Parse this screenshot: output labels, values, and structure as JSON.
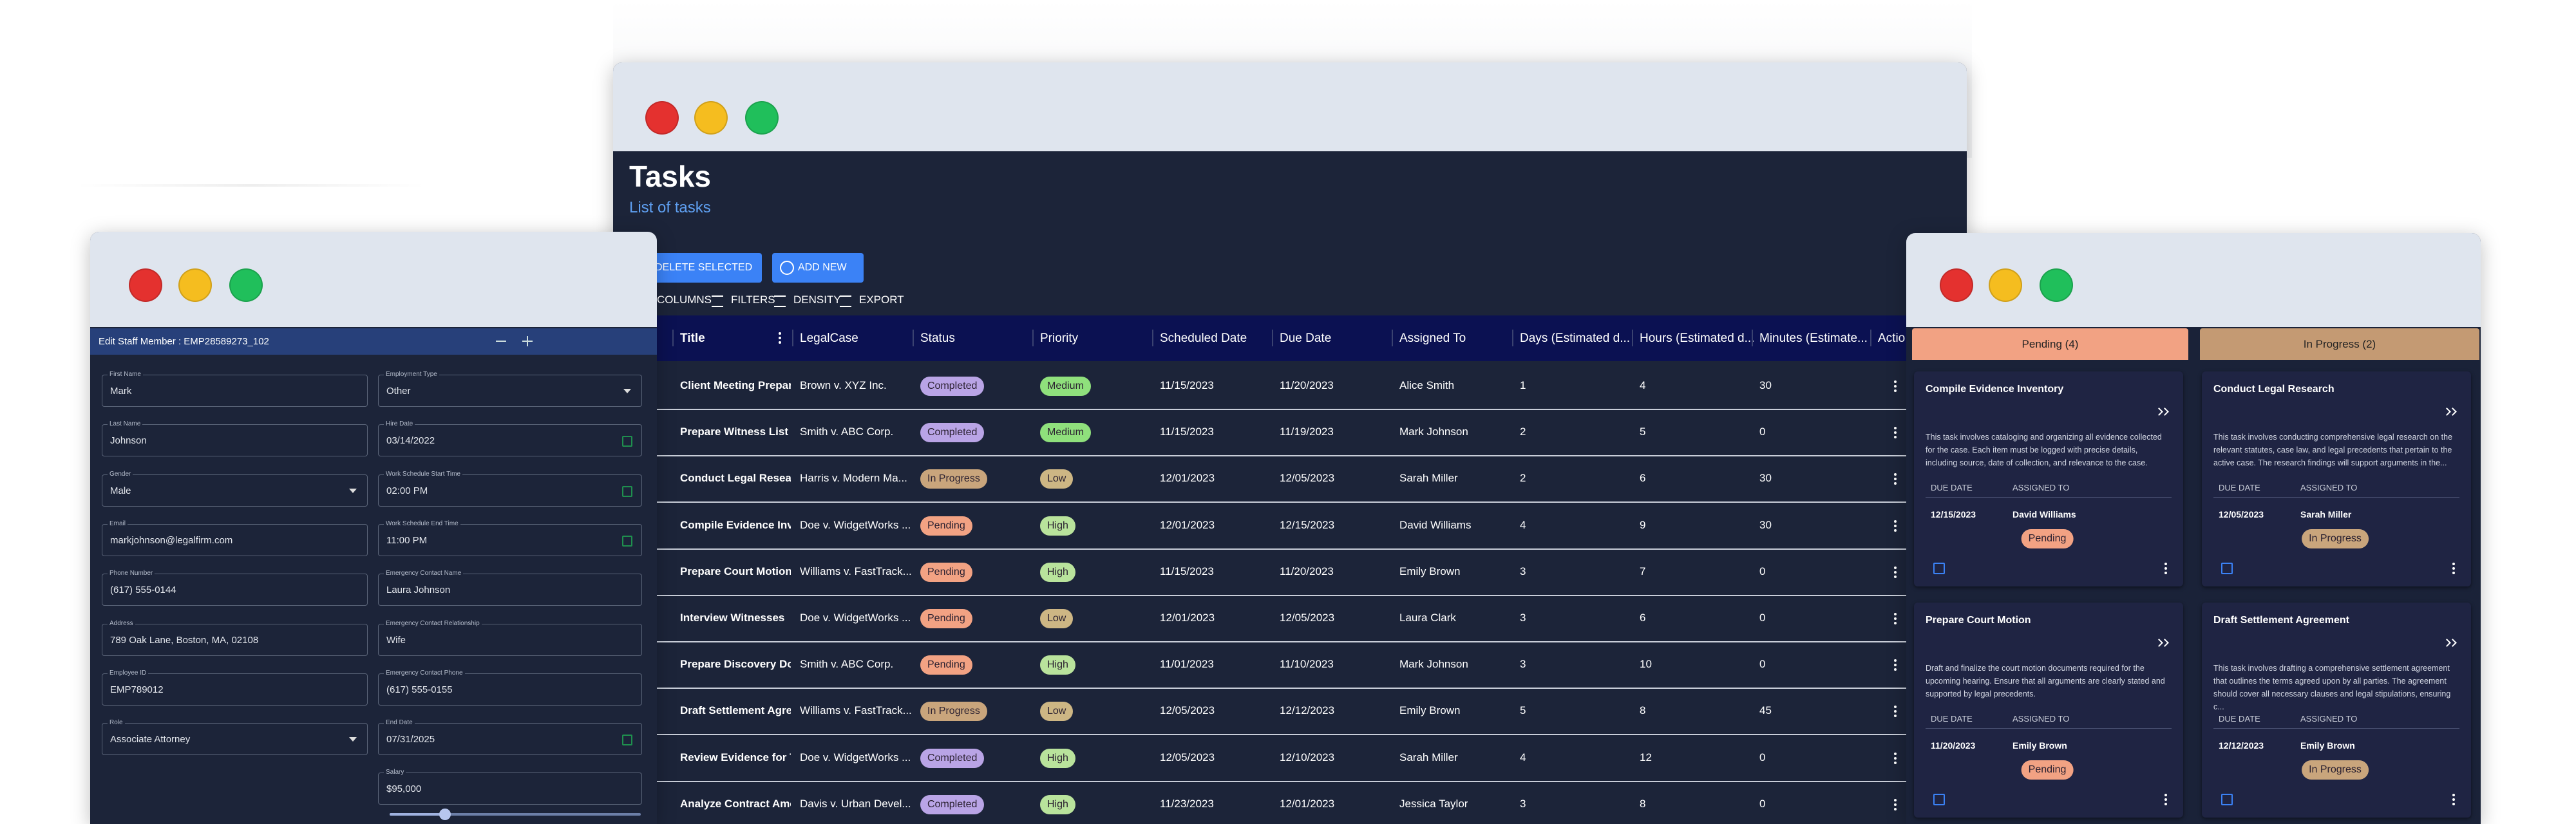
{
  "tasks_window": {
    "title": "Tasks",
    "subtitle": "List of tasks",
    "buttons": [
      "DELETE SELECTED",
      "ADD NEW"
    ],
    "toolbar": [
      "COLUMNS",
      "FILTERS",
      "DENSITY",
      "EXPORT"
    ],
    "columns": [
      "Title",
      "LegalCase",
      "Status",
      "Priority",
      "Scheduled Date",
      "Due Date",
      "Assigned To",
      "Days (Estimated d...",
      "Hours (Estimated d...",
      "Minutes (Estimate...",
      "Actio"
    ],
    "rows": [
      [
        "Client Meeting Preparati",
        "Brown v. XYZ Inc.",
        "Completed",
        "Medium",
        "11/15/2023",
        "11/20/2023",
        "Alice Smith",
        1,
        4,
        30
      ],
      [
        "Prepare Witness List",
        "Smith v. ABC Corp.",
        "Completed",
        "Medium",
        "11/15/2023",
        "11/19/2023",
        "Mark Johnson",
        2,
        5,
        0
      ],
      [
        "Conduct Legal Research",
        "Harris v. Modern Ma...",
        "In Progress",
        "Low",
        "12/01/2023",
        "12/05/2023",
        "Sarah Miller",
        2,
        6,
        30
      ],
      [
        "Compile Evidence Inventi",
        "Doe v. WidgetWorks ...",
        "Pending",
        "High",
        "12/01/2023",
        "12/15/2023",
        "David Williams",
        4,
        9,
        30
      ],
      [
        "Prepare Court Motion",
        "Williams v. FastTrack...",
        "Pending",
        "High",
        "11/15/2023",
        "11/20/2023",
        "Emily Brown",
        3,
        7,
        0
      ],
      [
        "Interview Witnesses",
        "Doe v. WidgetWorks ...",
        "Pending",
        "Low",
        "12/01/2023",
        "12/05/2023",
        "Laura Clark",
        3,
        6,
        0
      ],
      [
        "Prepare Discovery Docu",
        "Smith v. ABC Corp.",
        "Pending",
        "High",
        "11/01/2023",
        "11/10/2023",
        "Mark Johnson",
        3,
        10,
        0
      ],
      [
        "Draft Settlement Agreem",
        "Williams v. FastTrack...",
        "In Progress",
        "Low",
        "12/05/2023",
        "12/12/2023",
        "Emily Brown",
        5,
        8,
        45
      ],
      [
        "Review Evidence for Tria",
        "Doe v. WidgetWorks ...",
        "Completed",
        "High",
        "12/05/2023",
        "12/10/2023",
        "Sarah Miller",
        4,
        12,
        0
      ],
      [
        "Analyze Contract Amend",
        "Davis v. Urban Devel...",
        "Completed",
        "High",
        "11/23/2023",
        "12/01/2023",
        "Jessica Taylor",
        3,
        8,
        0
      ]
    ],
    "status_colors": {
      "Completed": "#b9a4e6",
      "In Progress": "#c9a57c",
      "Pending": "#f2a283"
    },
    "priority_colors": {
      "Medium": "#8fe07c",
      "Low": "#cdb684",
      "High": "#b9e39c"
    }
  },
  "staff_form": {
    "title": "Edit Staff Member : EMP28589273_102",
    "left_fields": [
      {
        "label": "First Name",
        "value": "Mark"
      },
      {
        "label": "Last Name",
        "value": "Johnson"
      },
      {
        "label": "Gender",
        "value": "Male",
        "kind": "select"
      },
      {
        "label": "Email",
        "value": "markjohnson@legalfirm.com"
      },
      {
        "label": "Phone Number",
        "value": "(617) 555-0144"
      },
      {
        "label": "Address",
        "value": "789 Oak Lane, Boston, MA, 02108"
      },
      {
        "label": "Employee ID",
        "value": "EMP789012"
      },
      {
        "label": "Role",
        "value": "Associate Attorney",
        "kind": "select"
      }
    ],
    "right_fields": [
      {
        "label": "Employment Type",
        "value": "Other",
        "kind": "select"
      },
      {
        "label": "Hire Date",
        "value": "03/14/2022",
        "kind": "date"
      },
      {
        "label": "Work Schedule Start Time",
        "value": "02:00 PM",
        "kind": "date"
      },
      {
        "label": "Work Schedule End Time",
        "value": "11:00 PM",
        "kind": "date"
      },
      {
        "label": "Emergency Contact Name",
        "value": "Laura Johnson"
      },
      {
        "label": "Emergency Contact Relationship",
        "value": "Wife"
      },
      {
        "label": "Emergency Contact Phone",
        "value": "(617) 555-0155"
      },
      {
        "label": "End Date",
        "value": "07/31/2025",
        "kind": "date"
      },
      {
        "label": "Salary",
        "value": "$95,000"
      }
    ]
  },
  "kanban": {
    "due_label": "DUE DATE",
    "assigned_label": "ASSIGNED TO",
    "status_colors": {
      "Pending": "#f2a283",
      "In Progress": "#c9a57c"
    },
    "columns": [
      {
        "title": "Pending (4)",
        "color": "#f2a283",
        "cards": [
          {
            "title": "Compile Evidence Inventory",
            "description": "This task involves cataloging and organizing all evidence collected for the case. Each item must be logged with precise details, including source, date of collection, and relevance to the case.",
            "due_date": "12/15/2023",
            "assigned_to": "David Williams",
            "status": "Pending"
          },
          {
            "title": "Prepare Court Motion",
            "description": "Draft and finalize the court motion documents required for the upcoming hearing. Ensure that all arguments are clearly stated and supported by legal precedents.",
            "due_date": "11/20/2023",
            "assigned_to": "Emily Brown",
            "status": "Pending"
          }
        ]
      },
      {
        "title": "In Progress (2)",
        "color": "#c49a73",
        "cards": [
          {
            "title": "Conduct Legal Research",
            "description": "This task involves conducting comprehensive legal research on the relevant statutes, case law, and legal precedents that pertain to the active case. The research findings will support arguments in the...",
            "due_date": "12/05/2023",
            "assigned_to": "Sarah Miller",
            "status": "In Progress"
          },
          {
            "title": "Draft Settlement Agreement",
            "description": "This task involves drafting a comprehensive settlement agreement that outlines the terms agreed upon by all parties. The agreement should cover all necessary clauses and legal stipulations, ensuring c...",
            "due_date": "12/12/2023",
            "assigned_to": "Emily Brown",
            "status": "In Progress"
          }
        ]
      }
    ]
  }
}
